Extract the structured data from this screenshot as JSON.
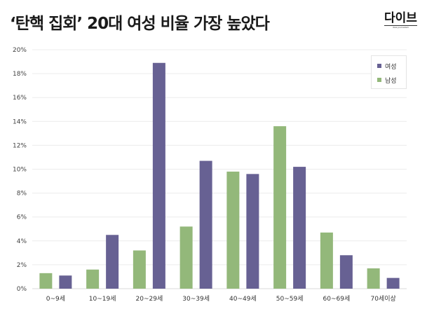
{
  "title": "‘탄핵 집회’ 20대 여성 비율 가장 높았다",
  "logo": {
    "text": "다이브",
    "tagline": "dive journalism"
  },
  "colors": {
    "female": "#676193",
    "male": "#93b87a"
  },
  "chart_data": {
    "type": "bar",
    "title": "‘탄핵 집회’ 20대 여성 비율 가장 높았다",
    "categories": [
      "0~9세",
      "10~19세",
      "20~29세",
      "30~39세",
      "40~49세",
      "50~59세",
      "60~69세",
      "70세이상"
    ],
    "series": [
      {
        "name": "남성",
        "color": "#93b87a",
        "values": [
          1.3,
          1.6,
          3.2,
          5.2,
          9.8,
          13.6,
          4.7,
          1.7
        ]
      },
      {
        "name": "여성",
        "color": "#676193",
        "values": [
          1.1,
          4.5,
          18.9,
          10.7,
          9.6,
          10.2,
          2.8,
          0.9
        ]
      }
    ],
    "ylim": [
      0,
      20
    ],
    "yticks": [
      "0%",
      "2%",
      "4%",
      "6%",
      "8%",
      "10%",
      "12%",
      "14%",
      "16%",
      "18%",
      "20%"
    ],
    "grid": true,
    "legend": {
      "position": "top-right",
      "entries": [
        "여성",
        "남성"
      ]
    }
  }
}
